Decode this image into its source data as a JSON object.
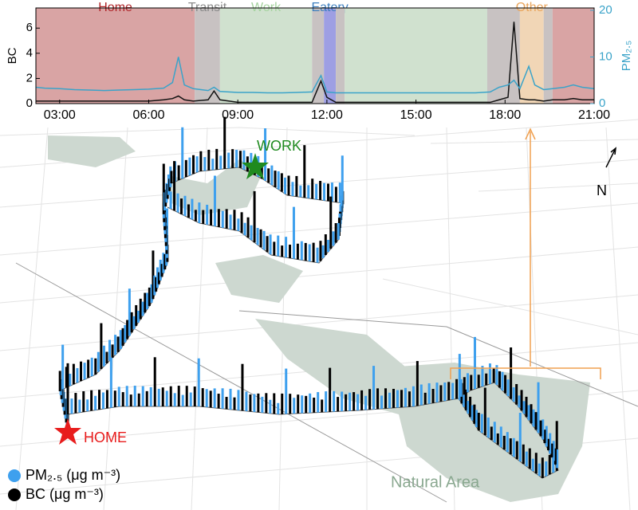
{
  "chart_data": {
    "type": "line",
    "x": [
      2.2,
      2.5,
      3,
      3.5,
      4,
      4.5,
      5,
      5.5,
      6,
      6.5,
      6.8,
      7.0,
      7.2,
      7.5,
      8.0,
      8.2,
      8.4,
      9,
      9.5,
      10,
      10.5,
      11,
      11.5,
      11.8,
      12.0,
      12.3,
      12.6,
      13,
      13.5,
      14,
      14.5,
      15,
      15.5,
      16,
      16.5,
      17,
      17.5,
      17.8,
      18.1,
      18.3,
      18.5,
      18.8,
      19,
      19.3,
      19.6,
      20,
      20.3,
      20.6,
      21
    ],
    "xlim": [
      2.2,
      21
    ],
    "xticks": [
      {
        "value": 3,
        "label": "03:00"
      },
      {
        "value": 6,
        "label": "06:00"
      },
      {
        "value": 9,
        "label": "09:00"
      },
      {
        "value": 12,
        "label": "12:00"
      },
      {
        "value": 15,
        "label": "15:00"
      },
      {
        "value": 18,
        "label": "18:00"
      },
      {
        "value": 21,
        "label": "21:00"
      }
    ],
    "ylabel": "BC",
    "ylim": [
      0,
      7.6
    ],
    "yticks": [
      0,
      2,
      4,
      6
    ],
    "y2label": "PM₂.₅",
    "y2lim": [
      0,
      20.5
    ],
    "y2ticks": [
      0,
      10,
      20
    ],
    "y2color": "#3aa3c9",
    "series": [
      {
        "name": "BC",
        "color": "#111111",
        "values": [
          0.2,
          0.2,
          0.2,
          0.2,
          0.2,
          0.2,
          0.2,
          0.2,
          0.2,
          0.3,
          0.4,
          0.6,
          0.3,
          0.2,
          0.3,
          1.0,
          0.3,
          0.1,
          0.1,
          0.1,
          0.1,
          0.1,
          0.1,
          1.8,
          0.5,
          0.1,
          0.1,
          0.1,
          0.1,
          0.1,
          0.1,
          0.1,
          0.1,
          0.1,
          0.1,
          0.1,
          0.1,
          0.3,
          0.5,
          6.5,
          0.4,
          0.3,
          0.3,
          0.2,
          0.3,
          0.3,
          0.4,
          0.3,
          0.3
        ]
      },
      {
        "name": "PM₂.₅",
        "color": "#3aa3c9",
        "axis": "y2",
        "values": [
          3.5,
          3.3,
          3.2,
          3.0,
          2.9,
          2.8,
          2.9,
          3.0,
          3.1,
          3.3,
          4.5,
          10.0,
          4.0,
          3.2,
          2.8,
          3.5,
          2.6,
          2.4,
          2.4,
          2.3,
          2.3,
          2.4,
          2.5,
          6.0,
          2.5,
          2.3,
          2.3,
          2.3,
          2.3,
          2.3,
          2.3,
          2.3,
          2.3,
          2.3,
          2.3,
          2.3,
          2.5,
          3.5,
          4.0,
          5.0,
          3.2,
          8.0,
          4.0,
          3.0,
          3.2,
          3.5,
          4.0,
          3.5,
          3.2
        ]
      }
    ],
    "activities": [
      {
        "name": "Home",
        "color": "#d9a4a4",
        "text_color": "#b0262a"
      },
      {
        "name": "Transit",
        "color": "#c8c2c2",
        "text_color": "#8a8a8a"
      },
      {
        "name": "Work",
        "color": "#d0e1cf",
        "text_color": "#a6d3a0"
      },
      {
        "name": "Eatery",
        "color": "#9e9fe3",
        "text_color": "#3d7fbf"
      },
      {
        "name": "Other",
        "color": "#f1d6b6",
        "text_color": "#e9a55c"
      }
    ],
    "periods": [
      {
        "start": 2.2,
        "end": 7.55,
        "activity": 0
      },
      {
        "start": 7.55,
        "end": 8.4,
        "activity": 1
      },
      {
        "start": 8.4,
        "end": 11.5,
        "activity": 2
      },
      {
        "start": 11.5,
        "end": 11.9,
        "activity": 1
      },
      {
        "start": 11.9,
        "end": 12.3,
        "activity": 3
      },
      {
        "start": 12.3,
        "end": 12.6,
        "activity": 1
      },
      {
        "start": 12.6,
        "end": 17.4,
        "activity": 2
      },
      {
        "start": 17.4,
        "end": 18.5,
        "activity": 1
      },
      {
        "start": 18.5,
        "end": 19.3,
        "activity": 4
      },
      {
        "start": 19.3,
        "end": 19.6,
        "activity": 1
      },
      {
        "start": 19.6,
        "end": 21,
        "activity": 0
      }
    ]
  },
  "map": {
    "work_label": "WORK",
    "home_label": "HOME",
    "north_label": "N",
    "natural_area_label": "Natural Area",
    "legend": [
      {
        "label": "PM₂.₅ (μg m⁻³)",
        "color": "#3ea0ee"
      },
      {
        "label": "BC (μg m⁻³)",
        "color": "#000000"
      }
    ]
  }
}
